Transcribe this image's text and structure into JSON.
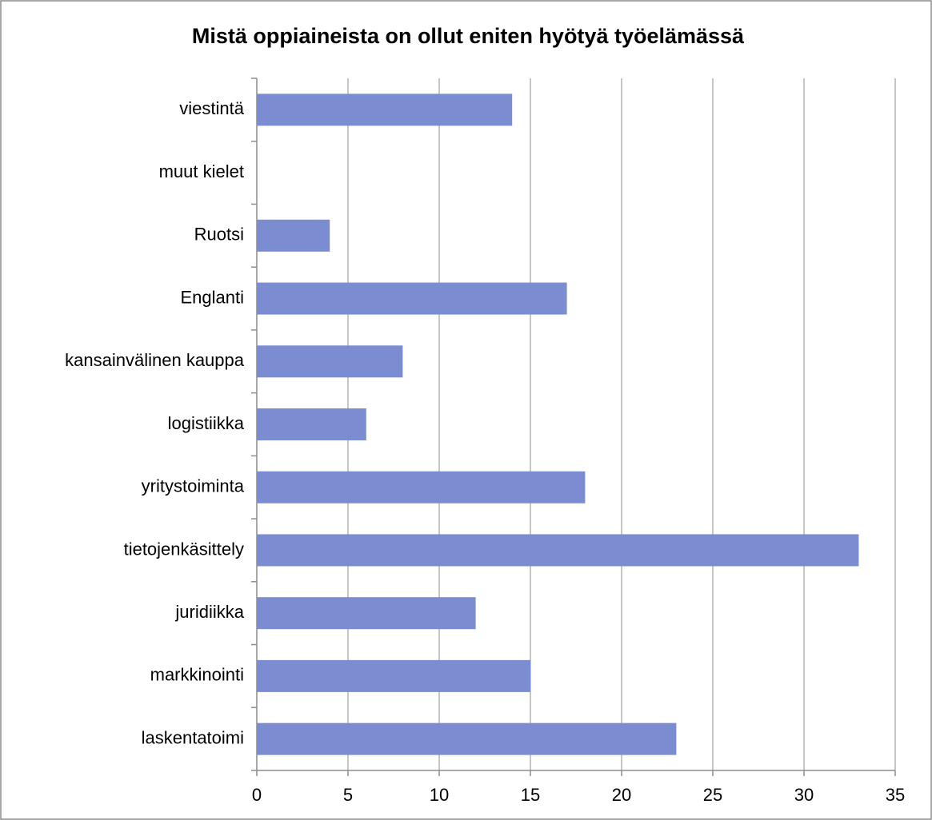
{
  "chart_data": {
    "type": "bar",
    "orientation": "horizontal",
    "title": "Mistä oppiaineista on ollut eniten hyötyä työelämässä",
    "categories": [
      "viestintä",
      "muut kielet",
      "Ruotsi",
      "Englanti",
      "kansainvälinen kauppa",
      "logistiikka",
      "yritystoiminta",
      "tietojenkäsittely",
      "juridiikka",
      "markkinointi",
      "laskentatoimi"
    ],
    "values": [
      14,
      0,
      4,
      17,
      8,
      6,
      18,
      33,
      12,
      15,
      23
    ],
    "color": "#7b8dd0",
    "xlim": [
      0,
      35
    ],
    "xticks": [
      0,
      5,
      10,
      15,
      20,
      25,
      30,
      35
    ],
    "grid": true
  }
}
